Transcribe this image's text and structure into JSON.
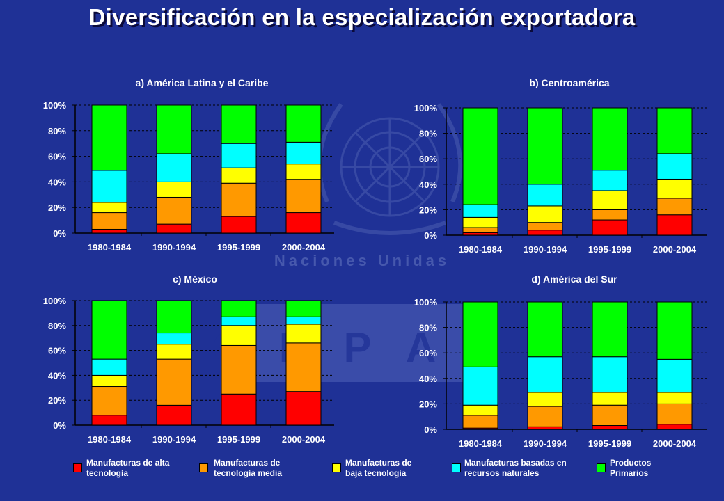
{
  "title": "Diversificación en la especialización exportadora",
  "colors": {
    "alta": "#ff0000",
    "media": "#ff9900",
    "baja": "#ffff00",
    "recursos": "#00ffff",
    "primarios": "#00ff00",
    "background": "#1f3196"
  },
  "watermark": {
    "org": "Naciones Unidas",
    "acronym": "C E P A L"
  },
  "legend": [
    {
      "key": "alta",
      "label": "Manufacturas de alta tecnología"
    },
    {
      "key": "media",
      "label": "Manufacturas de tecnología media"
    },
    {
      "key": "baja",
      "label": "Manufacturas de baja tecnología"
    },
    {
      "key": "recursos",
      "label": "Manufacturas basadas en recursos naturales"
    },
    {
      "key": "primarios",
      "label": "Productos Primarios"
    }
  ],
  "chart_data": [
    {
      "type": "bar",
      "stacked": true,
      "title": "a) América Latina y el Caribe",
      "categories": [
        "1980-1984",
        "1990-1994",
        "1995-1999",
        "2000-2004"
      ],
      "yticks": [
        "0%",
        "20%",
        "40%",
        "60%",
        "80%",
        "100%"
      ],
      "ylim": [
        0,
        100
      ],
      "series": [
        {
          "key": "alta",
          "name": "Manufacturas de alta tecnología",
          "values": [
            3,
            7,
            13,
            16
          ]
        },
        {
          "key": "media",
          "name": "Manufacturas de tecnología media",
          "values": [
            13,
            21,
            26,
            26
          ]
        },
        {
          "key": "baja",
          "name": "Manufacturas de baja tecnología",
          "values": [
            8,
            12,
            12,
            12
          ]
        },
        {
          "key": "recursos",
          "name": "Manufacturas basadas en recursos naturales",
          "values": [
            25,
            22,
            19,
            17
          ]
        },
        {
          "key": "primarios",
          "name": "Productos Primarios",
          "values": [
            51,
            38,
            30,
            29
          ]
        }
      ]
    },
    {
      "type": "bar",
      "stacked": true,
      "title": "b) Centroamérica",
      "categories": [
        "1980-1984",
        "1990-1994",
        "1995-1999",
        "2000-2004"
      ],
      "yticks": [
        "0%",
        "20%",
        "40%",
        "60%",
        "80%",
        "100%"
      ],
      "ylim": [
        0,
        100
      ],
      "series": [
        {
          "key": "alta",
          "name": "Manufacturas de alta tecnología",
          "values": [
            2,
            4,
            12,
            16
          ]
        },
        {
          "key": "media",
          "name": "Manufacturas de tecnología media",
          "values": [
            4,
            6,
            8,
            13
          ]
        },
        {
          "key": "baja",
          "name": "Manufacturas de baja tecnología",
          "values": [
            8,
            13,
            15,
            15
          ]
        },
        {
          "key": "recursos",
          "name": "Manufacturas basadas en recursos naturales",
          "values": [
            10,
            17,
            16,
            20
          ]
        },
        {
          "key": "primarios",
          "name": "Productos Primarios",
          "values": [
            76,
            60,
            49,
            36
          ]
        }
      ]
    },
    {
      "type": "bar",
      "stacked": true,
      "title": "c) México",
      "categories": [
        "1980-1984",
        "1990-1994",
        "1995-1999",
        "2000-2004"
      ],
      "yticks": [
        "0%",
        "20%",
        "40%",
        "60%",
        "80%",
        "100%"
      ],
      "ylim": [
        0,
        100
      ],
      "series": [
        {
          "key": "alta",
          "name": "Manufacturas de alta tecnología",
          "values": [
            8,
            16,
            25,
            27
          ]
        },
        {
          "key": "media",
          "name": "Manufacturas de tecnología media",
          "values": [
            23,
            37,
            39,
            39
          ]
        },
        {
          "key": "baja",
          "name": "Manufacturas de baja tecnología",
          "values": [
            9,
            12,
            16,
            15
          ]
        },
        {
          "key": "recursos",
          "name": "Manufacturas basadas en recursos naturales",
          "values": [
            13,
            9,
            7,
            6
          ]
        },
        {
          "key": "primarios",
          "name": "Productos Primarios",
          "values": [
            47,
            26,
            13,
            13
          ]
        }
      ]
    },
    {
      "type": "bar",
      "stacked": true,
      "title": "d) América del Sur",
      "categories": [
        "1980-1984",
        "1990-1994",
        "1995-1999",
        "2000-2004"
      ],
      "yticks": [
        "0%",
        "20%",
        "40%",
        "60%",
        "80%",
        "100%"
      ],
      "ylim": [
        0,
        100
      ],
      "series": [
        {
          "key": "alta",
          "name": "Manufacturas de alta tecnología",
          "values": [
            1,
            2,
            3,
            4
          ]
        },
        {
          "key": "media",
          "name": "Manufacturas de tecnología media",
          "values": [
            10,
            16,
            16,
            16
          ]
        },
        {
          "key": "baja",
          "name": "Manufacturas de baja tecnología",
          "values": [
            8,
            11,
            10,
            9
          ]
        },
        {
          "key": "recursos",
          "name": "Manufacturas basadas en recursos naturales",
          "values": [
            30,
            28,
            28,
            26
          ]
        },
        {
          "key": "primarios",
          "name": "Productos Primarios",
          "values": [
            51,
            43,
            43,
            45
          ]
        }
      ]
    }
  ]
}
